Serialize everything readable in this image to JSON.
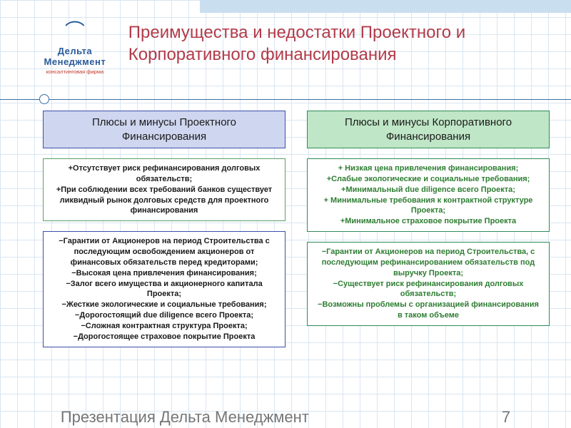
{
  "background": {
    "grid_color": "#d9e6f2",
    "top_stripe_color": "#c9dff0"
  },
  "logo": {
    "brand": "Дельта Менеджмент",
    "tagline": "консалтинговая фирма",
    "brand_color": "#2a5a9a",
    "tagline_color": "#c0392b"
  },
  "title": {
    "text": "Преимущества и недостатки Проектного и Корпоративного финансирования",
    "color": "#b23a48",
    "fontsize": 24
  },
  "columns": [
    {
      "header": "Плюсы и минусы\nПроектного Финансирования",
      "header_bg": "#cfd6ef",
      "header_border": "#3c4eb0",
      "plus_box": {
        "text": "+Отсутствует риск рефинансирования долговых обязательств;\n+При соблюдении всех требований банков существует ликвидный рынок долговых средств для проектного финансирования",
        "bg": "#ffffff",
        "border": "#5aa06a",
        "text_color": "#1a1a1a"
      },
      "minus_box": {
        "text": "−Гарантии от Акционеров на период Строительства с последующим освобождением акционеров от финансовых обязательств перед кредиторами;\n−Высокая цена привлечения финансирования;\n−Залог всего имущества и акционерного капитала Проекта;\n−Жесткие экологические и социальные требования;\n−Дорогостоящий due diligence всего Проекта;\n−Сложная контрактная структура Проекта;\n−Дорогостоящее страховое покрытие Проекта",
        "bg": "#ffffff",
        "border": "#3c4eb0",
        "text_color": "#1a1a1a"
      }
    },
    {
      "header": "Плюсы и минусы\nКорпоративного Финансирования",
      "header_bg": "#bfe6c6",
      "header_border": "#2e8b57",
      "plus_box": {
        "text": "+ Низкая цена привлечения финансирования;\n+Слабые экологические и социальные требования;\n+Минимальный due diligence всего Проекта;\n+ Минимальные требования к контрактной структуре Проекта;\n+Минимальное страховое покрытие Проекта",
        "bg": "#ffffff",
        "border": "#2e8b57",
        "text_color": "#2e7d32"
      },
      "minus_box": {
        "text": "−Гарантии от Акционеров на период Строительства, с последующим рефинансированием обязательств под выручку Проекта;\n−Существует риск рефинансирования долговых обязательств;\n−Возможны проблемы с организацией финансирования в таком объеме",
        "bg": "#ffffff",
        "border": "#2e8b57",
        "text_color": "#2e7d32"
      }
    }
  ],
  "footer": {
    "text": "Презентация Дельта Менеджмент",
    "page": "7",
    "color": "#767676"
  }
}
